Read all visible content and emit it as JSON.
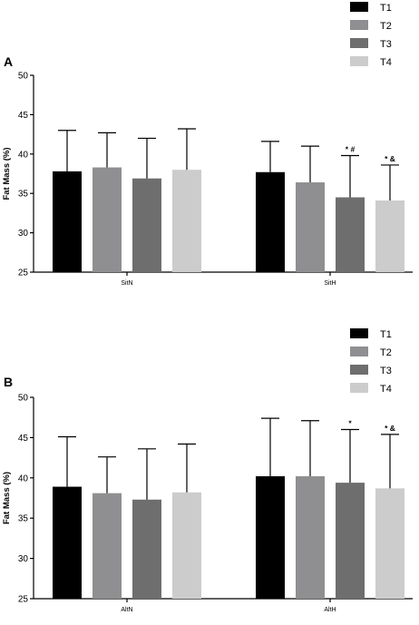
{
  "chart_data": [
    {
      "type": "bar",
      "panel_label": "A",
      "ylabel": "Fat Mass (%)",
      "ylim": [
        25,
        50
      ],
      "yticks": [
        25,
        30,
        35,
        40,
        45,
        50
      ],
      "categories": [
        "SitN",
        "SitH"
      ],
      "legend_placement": "top-right",
      "colors": [
        "#000000",
        "#8f8f91",
        "#6e6e6e",
        "#cccccc"
      ],
      "series": [
        {
          "name": "T1",
          "values": [
            37.8,
            37.7
          ],
          "errors": [
            5.2,
            3.9
          ],
          "annotations": [
            "",
            ""
          ]
        },
        {
          "name": "T2",
          "values": [
            38.3,
            36.4
          ],
          "errors": [
            4.4,
            4.6
          ],
          "annotations": [
            "",
            ""
          ]
        },
        {
          "name": "T3",
          "values": [
            36.9,
            34.5
          ],
          "errors": [
            5.1,
            5.3
          ],
          "annotations": [
            "",
            "* #"
          ]
        },
        {
          "name": "T4",
          "values": [
            38.0,
            34.1
          ],
          "errors": [
            5.2,
            4.5
          ],
          "annotations": [
            "",
            "* &"
          ]
        }
      ]
    },
    {
      "type": "bar",
      "panel_label": "B",
      "ylabel": "Fat Mass (%)",
      "ylim": [
        25,
        50
      ],
      "yticks": [
        25,
        30,
        35,
        40,
        45,
        50
      ],
      "categories": [
        "AltN",
        "AltH"
      ],
      "legend_placement": "top-right",
      "colors": [
        "#000000",
        "#8f8f91",
        "#6e6e6e",
        "#cccccc"
      ],
      "series": [
        {
          "name": "T1",
          "values": [
            38.9,
            40.2
          ],
          "errors": [
            6.2,
            7.2
          ],
          "annotations": [
            "",
            ""
          ]
        },
        {
          "name": "T2",
          "values": [
            38.1,
            40.2
          ],
          "errors": [
            4.5,
            6.9
          ],
          "annotations": [
            "",
            ""
          ]
        },
        {
          "name": "T3",
          "values": [
            37.3,
            39.4
          ],
          "errors": [
            6.3,
            6.6
          ],
          "annotations": [
            "",
            "*"
          ]
        },
        {
          "name": "T4",
          "values": [
            38.2,
            38.7
          ],
          "errors": [
            6.0,
            6.7
          ],
          "annotations": [
            "",
            "* &"
          ]
        }
      ]
    }
  ]
}
